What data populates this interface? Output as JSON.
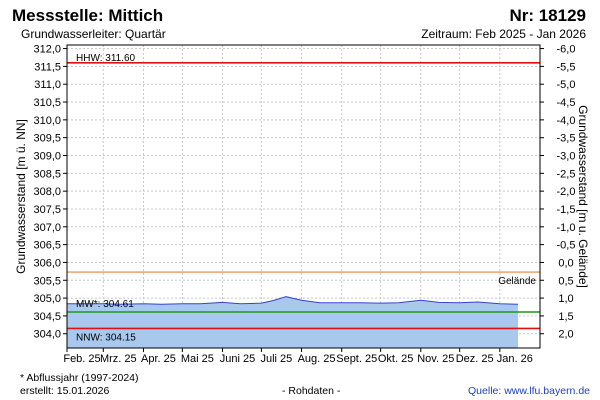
{
  "header": {
    "station": "Messstelle: Mittich",
    "number": "Nr: 18129",
    "aquifer": "Grundwasserleiter: Quartär",
    "period": "Zeitraum: Feb 2025 - Jan 2026"
  },
  "footer": {
    "note": "* Abflussjahr (1997-2024)",
    "created": "erstellt:  15.01.2026",
    "rawdata": "- Rohdaten -",
    "source": "Quelle:  www.lfu.bayern.de"
  },
  "colors": {
    "fill": "#a9c8ee",
    "series_line": "#3344cc",
    "hhw": "#e01010",
    "nnw": "#e01010",
    "mw": "#1a9a1a",
    "gelaende": "#e8803a",
    "grid": "#c8c8c8"
  },
  "chart_data": {
    "type": "area",
    "title": "",
    "ylabel": "Grundwasserstand [m ü. NN]",
    "ylabel_right": "Grundwasserstand [m u. Gelände]",
    "ylim": [
      303.6,
      312.1
    ],
    "yticks": [
      "304,0",
      "304,5",
      "305,0",
      "305,5",
      "306,0",
      "306,5",
      "307,0",
      "307,5",
      "308,0",
      "308,5",
      "309,0",
      "309,5",
      "310,0",
      "310,5",
      "311,0",
      "311,5",
      "312,0"
    ],
    "yticks_right": [
      "2,0",
      "1,5",
      "1,0",
      "0,5",
      "0,0",
      "-0,5",
      "-1,0",
      "-1,5",
      "-2,0",
      "-2,5",
      "-3,0",
      "-3,5",
      "-4,0",
      "-4,5",
      "-5,0",
      "-5,5",
      "-6,0"
    ],
    "x_ticks": [
      "Feb. 25",
      "Mrz. 25",
      "Apr. 25",
      "Mai 25",
      "Juni 25",
      "Juli 25",
      "Aug. 25",
      "Sept. 25",
      "Okt. 25",
      "Nov. 25",
      "Dez. 25",
      "Jan. 26"
    ],
    "gelaende_level": 305.73,
    "reference_lines": [
      {
        "label": "HHW: 311.60",
        "value": 311.6
      },
      {
        "label": "MW*: 304.61",
        "value": 304.61
      },
      {
        "label": "NNW: 304.15",
        "value": 304.15
      }
    ],
    "gelaende_label": "Gelände",
    "series": [
      {
        "x": [
          "2025-02-01",
          "2025-02-15",
          "2025-03-01",
          "2025-03-15",
          "2025-04-01",
          "2025-04-15",
          "2025-05-01",
          "2025-05-15",
          "2025-06-01",
          "2025-06-15",
          "2025-07-01",
          "2025-07-10",
          "2025-07-20",
          "2025-08-01",
          "2025-08-15",
          "2025-09-01",
          "2025-09-15",
          "2025-10-01",
          "2025-10-15",
          "2025-11-01",
          "2025-11-15",
          "2025-12-01",
          "2025-12-15",
          "2026-01-01",
          "2026-01-15"
        ],
        "values": [
          304.84,
          304.84,
          304.84,
          304.83,
          304.84,
          304.83,
          304.84,
          304.84,
          304.88,
          304.84,
          304.86,
          304.93,
          305.04,
          304.94,
          304.87,
          304.87,
          304.87,
          304.86,
          304.87,
          304.94,
          304.88,
          304.87,
          304.89,
          304.84,
          304.83
        ]
      }
    ]
  }
}
